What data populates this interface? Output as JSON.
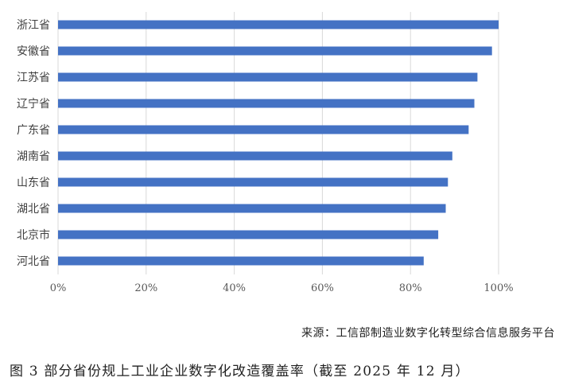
{
  "chart_data": {
    "type": "bar",
    "orientation": "horizontal",
    "categories": [
      "浙江省",
      "安徽省",
      "江苏省",
      "辽宁省",
      "广东省",
      "湖南省",
      "山东省",
      "湖北省",
      "北京市",
      "河北省"
    ],
    "values": [
      100,
      98.5,
      95.2,
      94.5,
      93.2,
      89.5,
      88.5,
      88.0,
      86.3,
      83.0
    ],
    "xlim": [
      0,
      100
    ],
    "x_ticks": [
      "0%",
      "20%",
      "40%",
      "60%",
      "80%",
      "100%"
    ],
    "grid": "vertical",
    "legend": "none",
    "bar_color": "#4472C4"
  },
  "source_text": "来源：工信部制造业数字化转型综合信息服务平台",
  "caption": "图 3 部分省份规上工业企业数字化改造覆盖率（截至 2025 年 12 月）"
}
